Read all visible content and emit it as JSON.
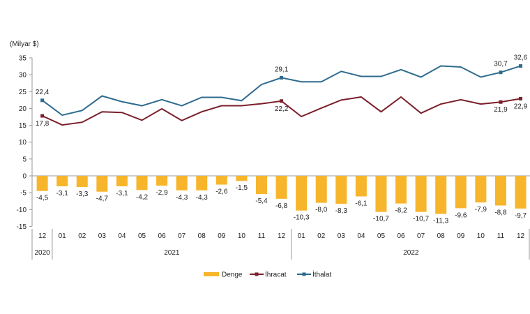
{
  "chart_data": {
    "type": "bar+line",
    "unit_label": "(Milyar $)",
    "ylim": [
      -15,
      35
    ],
    "yticks": [
      35,
      30,
      25,
      20,
      15,
      10,
      5,
      0,
      -5,
      -10,
      -15
    ],
    "categories": [
      "12",
      "01",
      "02",
      "03",
      "04",
      "05",
      "06",
      "07",
      "08",
      "09",
      "10",
      "11",
      "12",
      "01",
      "02",
      "03",
      "04",
      "05",
      "06",
      "07",
      "08",
      "09",
      "10",
      "11",
      "12"
    ],
    "year_groups": [
      {
        "label": "2020",
        "count": 1
      },
      {
        "label": "2021",
        "count": 12
      },
      {
        "label": "2022",
        "count": 12
      }
    ],
    "grid": false,
    "legend_position": "bottom",
    "series": [
      {
        "name": "Denge",
        "kind": "bar",
        "color": "#F7B52C",
        "values": [
          -4.5,
          -3.1,
          -3.3,
          -4.7,
          -3.1,
          -4.2,
          -2.9,
          -4.3,
          -4.3,
          -2.6,
          -1.5,
          -5.4,
          -6.8,
          -10.3,
          -8.0,
          -8.3,
          -6.1,
          -10.7,
          -8.2,
          -10.7,
          -11.3,
          -9.6,
          -7.9,
          -8.8,
          -9.7
        ],
        "labels": [
          "-4,5",
          "-3,1",
          "-3,3",
          "-4,7",
          "-3,1",
          "-4,2",
          "-2,9",
          "-4,3",
          "-4,3",
          "-2,6",
          "-1,5",
          "-5,4",
          "-6,8",
          "-10,3",
          "-8,0",
          "-8,3",
          "-6,1",
          "-10,7",
          "-8,2",
          "-10,7",
          "-11,3",
          "-9,6",
          "-7,9",
          "-8,8",
          "-9,7"
        ]
      },
      {
        "name": "İhracat",
        "kind": "line",
        "color": "#7A1F2B",
        "values": [
          17.8,
          15.1,
          15.9,
          19.0,
          18.8,
          16.5,
          19.9,
          16.4,
          19.0,
          20.8,
          20.8,
          21.4,
          22.2,
          17.6,
          20.1,
          22.5,
          23.4,
          19.0,
          23.4,
          18.6,
          21.3,
          22.6,
          21.3,
          21.9,
          22.9
        ],
        "point_labels": [
          {
            "index": 0,
            "text": "17,8"
          },
          {
            "index": 12,
            "text": "22,2"
          },
          {
            "index": 23,
            "text": "21,9"
          },
          {
            "index": 24,
            "text": "22,9"
          }
        ]
      },
      {
        "name": "İthalat",
        "kind": "line",
        "color": "#2F6B8F",
        "values": [
          22.4,
          18.0,
          19.4,
          23.7,
          22.0,
          20.8,
          22.6,
          20.8,
          23.3,
          23.3,
          22.3,
          27.1,
          29.1,
          27.9,
          27.9,
          31.0,
          29.5,
          29.5,
          31.5,
          29.3,
          32.6,
          32.3,
          29.3,
          30.7,
          32.6
        ],
        "point_labels": [
          {
            "index": 0,
            "text": "22,4"
          },
          {
            "index": 12,
            "text": "29,1"
          },
          {
            "index": 23,
            "text": "30,7"
          },
          {
            "index": 24,
            "text": "32,6"
          }
        ]
      }
    ]
  }
}
